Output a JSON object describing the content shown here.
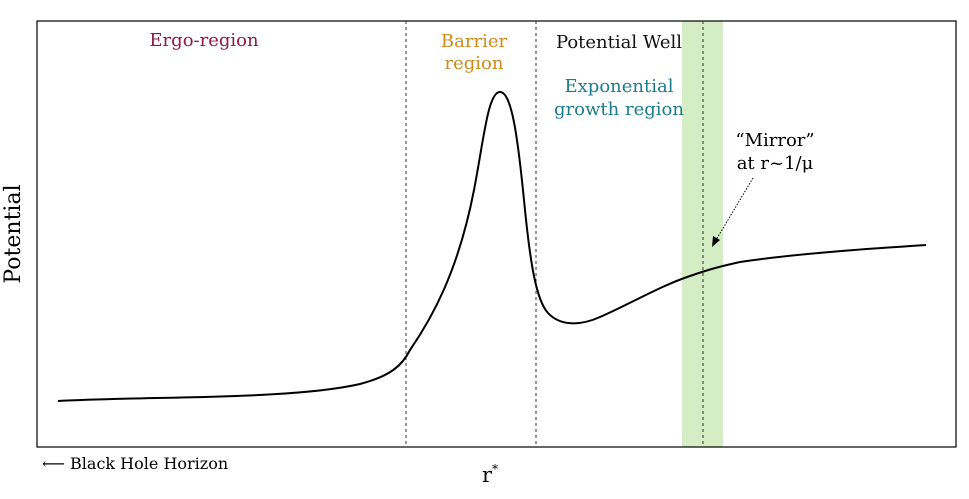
{
  "axes": {
    "ylabel": "Potential",
    "xlabel": "r",
    "xlabel_superscript": "*",
    "horizon_label": "⟵ Black Hole Horizon"
  },
  "regions": {
    "ergo": {
      "label": "Ergo-region",
      "color": "#8b1a4a"
    },
    "barrier": {
      "line1": "Barrier",
      "line2": "region",
      "color": "#d08a1c"
    },
    "well": {
      "label": "Potential Well",
      "color": "#111111"
    },
    "growth": {
      "line1": "Exponential",
      "line2": "growth region",
      "color": "#1a7d8c"
    }
  },
  "mirror": {
    "line1": "“Mirror”",
    "line2": "at r~1/μ",
    "band_color": "#d4edc4"
  },
  "curve": {
    "description_type": "potential",
    "color": "#000000"
  }
}
